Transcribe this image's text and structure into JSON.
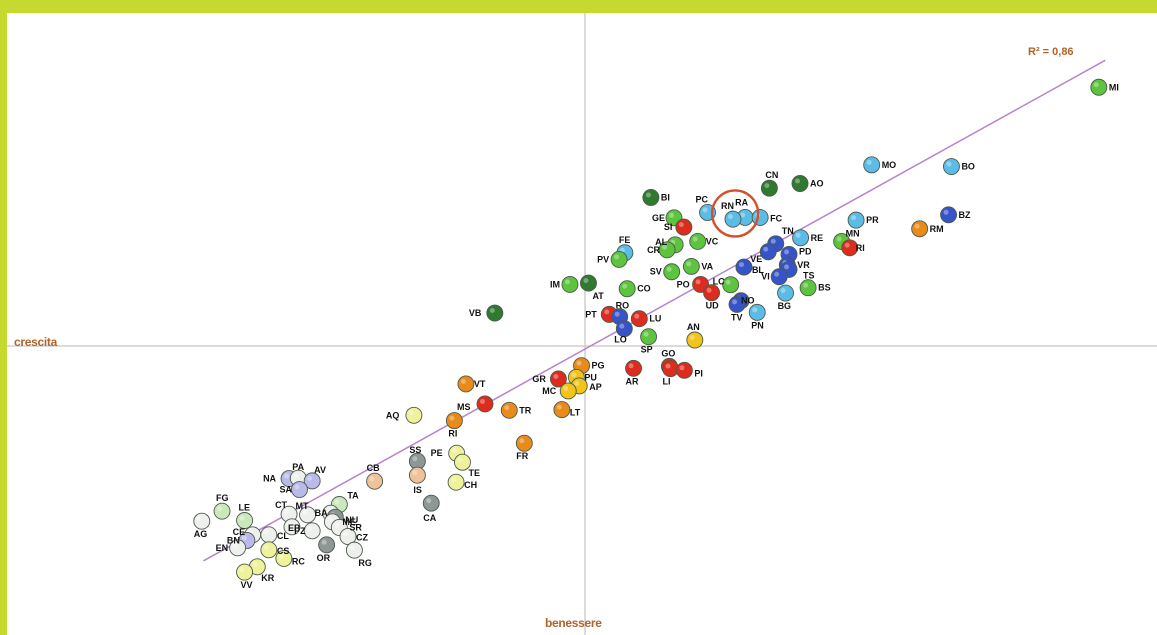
{
  "chart_data": {
    "type": "scatter",
    "xlabel": "benessere",
    "ylabel": "crescita",
    "annotation": "R² = 0,86",
    "trendline_color": "#b784cf",
    "highlight_circle_color": "#d3512c",
    "highlight": "RA",
    "xlim": [
      -1,
      1
    ],
    "ylim": [
      -1,
      1
    ],
    "colors": {
      "dark_green": "#2f7a30",
      "green": "#5cc43e",
      "light_green": "#a8dd7a",
      "blue": "#3753c8",
      "sky": "#5bbde7",
      "red": "#dd2b1e",
      "orange": "#e88b1b",
      "yellow": "#f0c419",
      "pale_yellow": "#eef29a",
      "grey": "#8f9696",
      "white": "#eef0ee",
      "pale_green": "#cbe8bd",
      "peach": "#f0c29a",
      "lavender": "#b9b9ea"
    },
    "points": [
      {
        "label": "MI",
        "x": 0.889,
        "y": 0.777,
        "color": "green",
        "lx": 10,
        "ly": 3
      },
      {
        "label": "BO",
        "x": 0.634,
        "y": 0.539,
        "color": "sky",
        "lx": 10,
        "ly": 3
      },
      {
        "label": "MO",
        "x": 0.496,
        "y": 0.544,
        "color": "sky",
        "lx": 10,
        "ly": 3
      },
      {
        "label": "BZ",
        "x": 0.629,
        "y": 0.394,
        "color": "blue",
        "lx": 10,
        "ly": 3
      },
      {
        "label": "RM",
        "x": 0.579,
        "y": 0.352,
        "color": "orange",
        "lx": 10,
        "ly": 3
      },
      {
        "label": "PR",
        "x": 0.469,
        "y": 0.378,
        "color": "sky",
        "lx": 10,
        "ly": 3
      },
      {
        "label": "AO",
        "x": 0.372,
        "y": 0.488,
        "color": "dark_green",
        "lx": 10,
        "ly": 3
      },
      {
        "label": "CN",
        "x": 0.319,
        "y": 0.474,
        "color": "dark_green",
        "lx": -4,
        "ly": -10
      },
      {
        "label": "RA",
        "x": 0.277,
        "y": 0.386,
        "color": "sky",
        "lx": -10,
        "ly": -12
      },
      {
        "label": "FC",
        "x": 0.303,
        "y": 0.386,
        "color": "sky",
        "lx": 10,
        "ly": 4
      },
      {
        "label": "PC",
        "x": 0.212,
        "y": 0.401,
        "color": "sky",
        "lx": -12,
        "ly": -10
      },
      {
        "label": "RN",
        "x": 0.256,
        "y": 0.381,
        "color": "sky",
        "lx": -12,
        "ly": -10
      },
      {
        "label": "BI",
        "x": 0.114,
        "y": 0.446,
        "color": "dark_green",
        "lx": 10,
        "ly": 3
      },
      {
        "label": "GE",
        "x": 0.154,
        "y": 0.385,
        "color": "green",
        "lx": -22,
        "ly": 3
      },
      {
        "label": "SI",
        "x": 0.171,
        "y": 0.357,
        "color": "red",
        "lx": -20,
        "ly": 3
      },
      {
        "label": "VC",
        "x": 0.195,
        "y": 0.314,
        "color": "green",
        "lx": 8,
        "ly": 3
      },
      {
        "label": "AL",
        "x": 0.156,
        "y": 0.304,
        "color": "green",
        "lx": -20,
        "ly": 0
      },
      {
        "label": "CR",
        "x": 0.142,
        "y": 0.289,
        "color": "green",
        "lx": -20,
        "ly": 3
      },
      {
        "label": "VA",
        "x": 0.184,
        "y": 0.239,
        "color": "green",
        "lx": 10,
        "ly": 3
      },
      {
        "label": "SV",
        "x": 0.15,
        "y": 0.223,
        "color": "green",
        "lx": -22,
        "ly": 3
      },
      {
        "label": "FE",
        "x": 0.069,
        "y": 0.28,
        "color": "sky",
        "lx": -6,
        "ly": -10
      },
      {
        "label": "PV",
        "x": 0.059,
        "y": 0.26,
        "color": "green",
        "lx": -22,
        "ly": 3
      },
      {
        "label": "IM",
        "x": -0.026,
        "y": 0.185,
        "color": "green",
        "lx": -20,
        "ly": 3
      },
      {
        "label": "AT",
        "x": 0.006,
        "y": 0.189,
        "color": "dark_green",
        "lx": 4,
        "ly": 16
      },
      {
        "label": "CO",
        "x": 0.073,
        "y": 0.172,
        "color": "green",
        "lx": 10,
        "ly": 3
      },
      {
        "label": "PO",
        "x": 0.2,
        "y": 0.185,
        "color": "red",
        "lx": -24,
        "ly": 3
      },
      {
        "label": "UD",
        "x": 0.219,
        "y": 0.16,
        "color": "red",
        "lx": -6,
        "ly": 16
      },
      {
        "label": "LC",
        "x": 0.252,
        "y": 0.184,
        "color": "green",
        "lx": -18,
        "ly": 0
      },
      {
        "label": "VB",
        "x": -0.156,
        "y": 0.099,
        "color": "dark_green",
        "lx": -26,
        "ly": 3
      },
      {
        "label": "PT",
        "x": 0.042,
        "y": 0.095,
        "color": "red",
        "lx": -24,
        "ly": 3
      },
      {
        "label": "RO",
        "x": 0.06,
        "y": 0.088,
        "color": "blue",
        "lx": -4,
        "ly": -8
      },
      {
        "label": "LU",
        "x": 0.094,
        "y": 0.082,
        "color": "red",
        "lx": 10,
        "ly": 3
      },
      {
        "label": "LO",
        "x": 0.068,
        "y": 0.052,
        "color": "blue",
        "lx": -10,
        "ly": 14
      },
      {
        "label": "SP",
        "x": 0.11,
        "y": 0.028,
        "color": "green",
        "lx": -8,
        "ly": 16
      },
      {
        "label": "AN",
        "x": 0.19,
        "y": 0.018,
        "color": "yellow",
        "lx": -8,
        "ly": -10
      },
      {
        "label": "TN",
        "x": 0.33,
        "y": 0.307,
        "color": "blue",
        "lx": 6,
        "ly": -10
      },
      {
        "label": "RE",
        "x": 0.373,
        "y": 0.325,
        "color": "sky",
        "lx": 10,
        "ly": 3
      },
      {
        "label": "VE",
        "x": 0.317,
        "y": 0.283,
        "color": "blue",
        "lx": -18,
        "ly": 10
      },
      {
        "label": "PD",
        "x": 0.353,
        "y": 0.275,
        "color": "blue",
        "lx": 10,
        "ly": 0
      },
      {
        "label": "BL",
        "x": 0.275,
        "y": 0.237,
        "color": "blue",
        "lx": 8,
        "ly": 6
      },
      {
        "label": "VR",
        "x": 0.35,
        "y": 0.243,
        "color": "blue",
        "lx": 10,
        "ly": 3
      },
      {
        "label": "TS",
        "x": 0.353,
        "y": 0.23,
        "color": "blue",
        "lx": 14,
        "ly": 9
      },
      {
        "label": "VI",
        "x": 0.336,
        "y": 0.208,
        "color": "blue",
        "lx": -18,
        "ly": 3
      },
      {
        "label": "BS",
        "x": 0.386,
        "y": 0.175,
        "color": "green",
        "lx": 10,
        "ly": 3
      },
      {
        "label": "BG",
        "x": 0.347,
        "y": 0.159,
        "color": "sky",
        "lx": -8,
        "ly": 16
      },
      {
        "label": "NO",
        "x": 0.27,
        "y": 0.136,
        "color": "blue",
        "lx": 0,
        "ly": 3
      },
      {
        "label": "TV",
        "x": 0.263,
        "y": 0.125,
        "color": "blue",
        "lx": -6,
        "ly": 16
      },
      {
        "label": "PN",
        "x": 0.298,
        "y": 0.101,
        "color": "sky",
        "lx": -6,
        "ly": 16
      },
      {
        "label": "MN",
        "x": 0.444,
        "y": 0.314,
        "color": "green",
        "lx": 4,
        "ly": -5
      },
      {
        "label": "RI",
        "x": 0.458,
        "y": 0.295,
        "color": "red",
        "lx": 6,
        "ly": 3
      },
      {
        "label": "PG",
        "x": -0.006,
        "y": -0.059,
        "color": "orange",
        "lx": 10,
        "ly": 3
      },
      {
        "label": "GR",
        "x": -0.046,
        "y": -0.099,
        "color": "red",
        "lx": -26,
        "ly": 3
      },
      {
        "label": "PU",
        "x": -0.015,
        "y": -0.094,
        "color": "yellow",
        "lx": 8,
        "ly": 3
      },
      {
        "label": "AP",
        "x": -0.01,
        "y": -0.12,
        "color": "yellow",
        "lx": 10,
        "ly": 4
      },
      {
        "label": "MC",
        "x": -0.029,
        "y": -0.135,
        "color": "yellow",
        "lx": -26,
        "ly": 3
      },
      {
        "label": "LT",
        "x": -0.04,
        "y": -0.191,
        "color": "orange",
        "lx": 8,
        "ly": 6
      },
      {
        "label": "GO",
        "x": 0.146,
        "y": -0.061,
        "color": "red",
        "lx": -8,
        "ly": -10
      },
      {
        "label": "AR",
        "x": 0.084,
        "y": -0.067,
        "color": "red",
        "lx": -8,
        "ly": 16
      },
      {
        "label": "LI",
        "x": 0.148,
        "y": -0.068,
        "color": "red",
        "lx": -8,
        "ly": 16
      },
      {
        "label": "PI",
        "x": 0.172,
        "y": -0.073,
        "color": "red",
        "lx": 10,
        "ly": 6
      },
      {
        "label": "VT",
        "x": -0.206,
        "y": -0.114,
        "color": "orange",
        "lx": 8,
        "ly": 3
      },
      {
        "label": "MS",
        "x": -0.173,
        "y": -0.174,
        "color": "red",
        "lx": -28,
        "ly": 6
      },
      {
        "label": "TR",
        "x": -0.131,
        "y": -0.193,
        "color": "orange",
        "lx": 10,
        "ly": 3
      },
      {
        "label": "AQ",
        "x": -0.296,
        "y": -0.208,
        "color": "pale_yellow",
        "lx": -28,
        "ly": 3
      },
      {
        "label": "RI",
        "x": -0.226,
        "y": -0.224,
        "color": "orange",
        "lx": -6,
        "ly": 16
      },
      {
        "label": "FR",
        "x": -0.105,
        "y": -0.292,
        "color": "orange",
        "lx": -8,
        "ly": 16
      },
      {
        "label": "PE",
        "x": -0.222,
        "y": -0.322,
        "color": "pale_yellow",
        "lx": -26,
        "ly": 3
      },
      {
        "label": "TE",
        "x": -0.212,
        "y": -0.349,
        "color": "pale_yellow",
        "lx": 6,
        "ly": 14
      },
      {
        "label": "CH",
        "x": -0.223,
        "y": -0.409,
        "color": "pale_yellow",
        "lx": 8,
        "ly": 6
      },
      {
        "label": "SS",
        "x": -0.29,
        "y": -0.346,
        "color": "grey",
        "lx": -8,
        "ly": -8
      },
      {
        "label": "IS",
        "x": -0.29,
        "y": -0.388,
        "color": "peach",
        "lx": -4,
        "ly": 18
      },
      {
        "label": "CA",
        "x": -0.266,
        "y": -0.472,
        "color": "grey",
        "lx": -8,
        "ly": 18
      },
      {
        "label": "CB",
        "x": -0.364,
        "y": -0.406,
        "color": "peach",
        "lx": -8,
        "ly": -10
      },
      {
        "label": "NA",
        "x": -0.512,
        "y": -0.398,
        "color": "lavender",
        "lx": -26,
        "ly": 3
      },
      {
        "label": "PA",
        "x": -0.496,
        "y": -0.397,
        "color": "white",
        "lx": -6,
        "ly": -8
      },
      {
        "label": "AV",
        "x": -0.472,
        "y": -0.405,
        "color": "lavender",
        "lx": 2,
        "ly": -8
      },
      {
        "label": "SA",
        "x": -0.494,
        "y": -0.431,
        "color": "lavender",
        "lx": -20,
        "ly": 3
      },
      {
        "label": "TA",
        "x": -0.425,
        "y": -0.476,
        "color": "pale_green",
        "lx": 8,
        "ly": -6
      },
      {
        "label": "BA",
        "x": -0.44,
        "y": -0.502,
        "color": "white",
        "lx": -16,
        "ly": 3
      },
      {
        "label": "NU",
        "x": -0.432,
        "y": -0.514,
        "color": "grey",
        "lx": 10,
        "ly": 6
      },
      {
        "label": "CT",
        "x": -0.512,
        "y": -0.505,
        "color": "white",
        "lx": -14,
        "ly": -6
      },
      {
        "label": "MT",
        "x": -0.48,
        "y": -0.507,
        "color": "white",
        "lx": -12,
        "ly": -6
      },
      {
        "label": "ME",
        "x": -0.437,
        "y": -0.528,
        "color": "white",
        "lx": 10,
        "ly": 3
      },
      {
        "label": "SR",
        "x": -0.425,
        "y": -0.545,
        "color": "white",
        "lx": 10,
        "ly": 3
      },
      {
        "label": "EP",
        "x": -0.507,
        "y": -0.543,
        "color": "white",
        "lx": -4,
        "ly": 4
      },
      {
        "label": "PZ",
        "x": -0.472,
        "y": -0.555,
        "color": "white",
        "lx": -18,
        "ly": 3
      },
      {
        "label": "CZ",
        "x": -0.41,
        "y": -0.572,
        "color": "white",
        "lx": 8,
        "ly": 4
      },
      {
        "label": "OR",
        "x": -0.447,
        "y": -0.597,
        "color": "grey",
        "lx": -10,
        "ly": 16
      },
      {
        "label": "RG",
        "x": -0.399,
        "y": -0.613,
        "color": "white",
        "lx": 4,
        "ly": 16
      },
      {
        "label": "FG",
        "x": -0.628,
        "y": -0.496,
        "color": "pale_green",
        "lx": -6,
        "ly": -10
      },
      {
        "label": "LE",
        "x": -0.589,
        "y": -0.524,
        "color": "pale_green",
        "lx": -6,
        "ly": -10
      },
      {
        "label": "AG",
        "x": -0.663,
        "y": -0.526,
        "color": "white",
        "lx": -8,
        "ly": 16
      },
      {
        "label": "CE",
        "x": -0.575,
        "y": -0.567,
        "color": "white",
        "lx": -20,
        "ly": 0
      },
      {
        "label": "BN",
        "x": -0.585,
        "y": -0.584,
        "color": "lavender",
        "lx": -20,
        "ly": 3
      },
      {
        "label": "CL",
        "x": -0.547,
        "y": -0.567,
        "color": "white",
        "lx": 8,
        "ly": 4
      },
      {
        "label": "EN",
        "x": -0.601,
        "y": -0.606,
        "color": "white",
        "lx": -22,
        "ly": 3
      },
      {
        "label": "CS",
        "x": -0.547,
        "y": -0.612,
        "color": "pale_yellow",
        "lx": 8,
        "ly": 4
      },
      {
        "label": "RC",
        "x": -0.521,
        "y": -0.638,
        "color": "pale_yellow",
        "lx": 8,
        "ly": 6
      },
      {
        "label": "KR",
        "x": -0.567,
        "y": -0.663,
        "color": "pale_yellow",
        "lx": 4,
        "ly": 14
      },
      {
        "label": "VV",
        "x": -0.589,
        "y": -0.679,
        "color": "pale_yellow",
        "lx": -4,
        "ly": 16
      }
    ]
  }
}
